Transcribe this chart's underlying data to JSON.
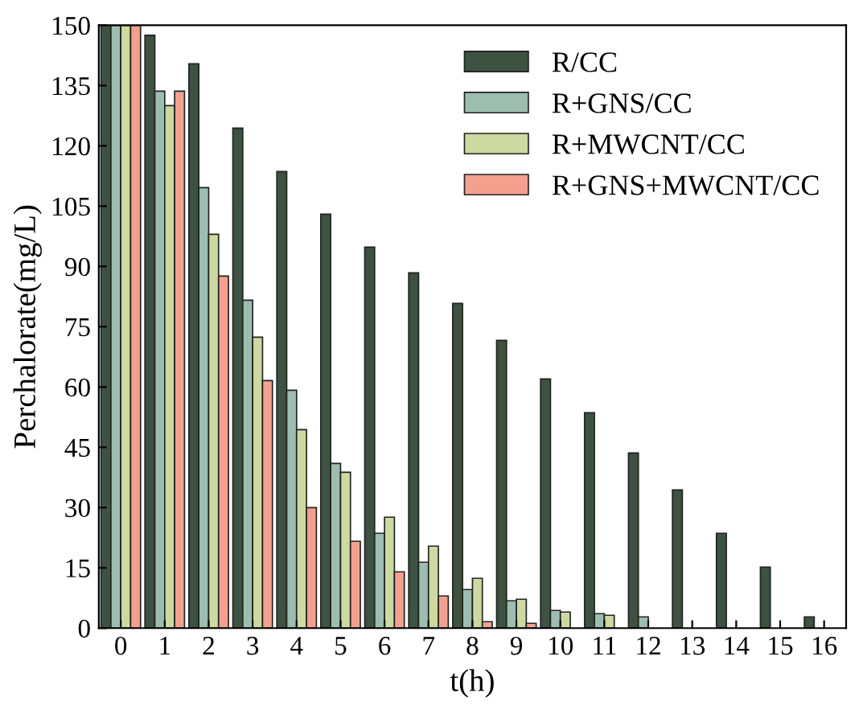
{
  "chart_data": {
    "type": "bar",
    "xlabel": "t(h)",
    "ylabel": "Perchalorate(mg/L)",
    "categories": [
      "0",
      "1",
      "2",
      "3",
      "4",
      "5",
      "6",
      "7",
      "8",
      "9",
      "10",
      "11",
      "12",
      "13",
      "14",
      "15",
      "16"
    ],
    "series": [
      {
        "name": "R/CC",
        "color": "#3d5240",
        "values": [
          150,
          147.5,
          140.4,
          124.4,
          113.6,
          103,
          94.8,
          88.4,
          80.8,
          71.6,
          62,
          53.6,
          43.6,
          34.4,
          23.6,
          15.2,
          2.8
        ]
      },
      {
        "name": "R+GNS/CC",
        "color": "#9dbdb0",
        "values": [
          150,
          133.6,
          109.6,
          81.6,
          59.2,
          41,
          23.6,
          16.4,
          9.6,
          6.8,
          4.4,
          3.6,
          2.8,
          null,
          null,
          null,
          null
        ]
      },
      {
        "name": "R+MWCNT/CC",
        "color": "#ccd9a0",
        "values": [
          150,
          130,
          98,
          72.4,
          49.4,
          38.8,
          27.6,
          20.4,
          12.4,
          7.2,
          4,
          3.2,
          null,
          null,
          null,
          null,
          null
        ]
      },
      {
        "name": "R+GNS+MWCNT/CC",
        "color": "#f4a08f",
        "values": [
          150,
          133.6,
          87.6,
          61.6,
          30,
          21.6,
          14,
          8,
          1.6,
          1.2,
          null,
          null,
          null,
          null,
          null,
          null,
          null
        ]
      }
    ],
    "ylim": [
      0,
      150
    ],
    "yticks": [
      0,
      15,
      30,
      45,
      60,
      75,
      90,
      105,
      120,
      135,
      150
    ],
    "grid": false,
    "legend": "top right"
  }
}
